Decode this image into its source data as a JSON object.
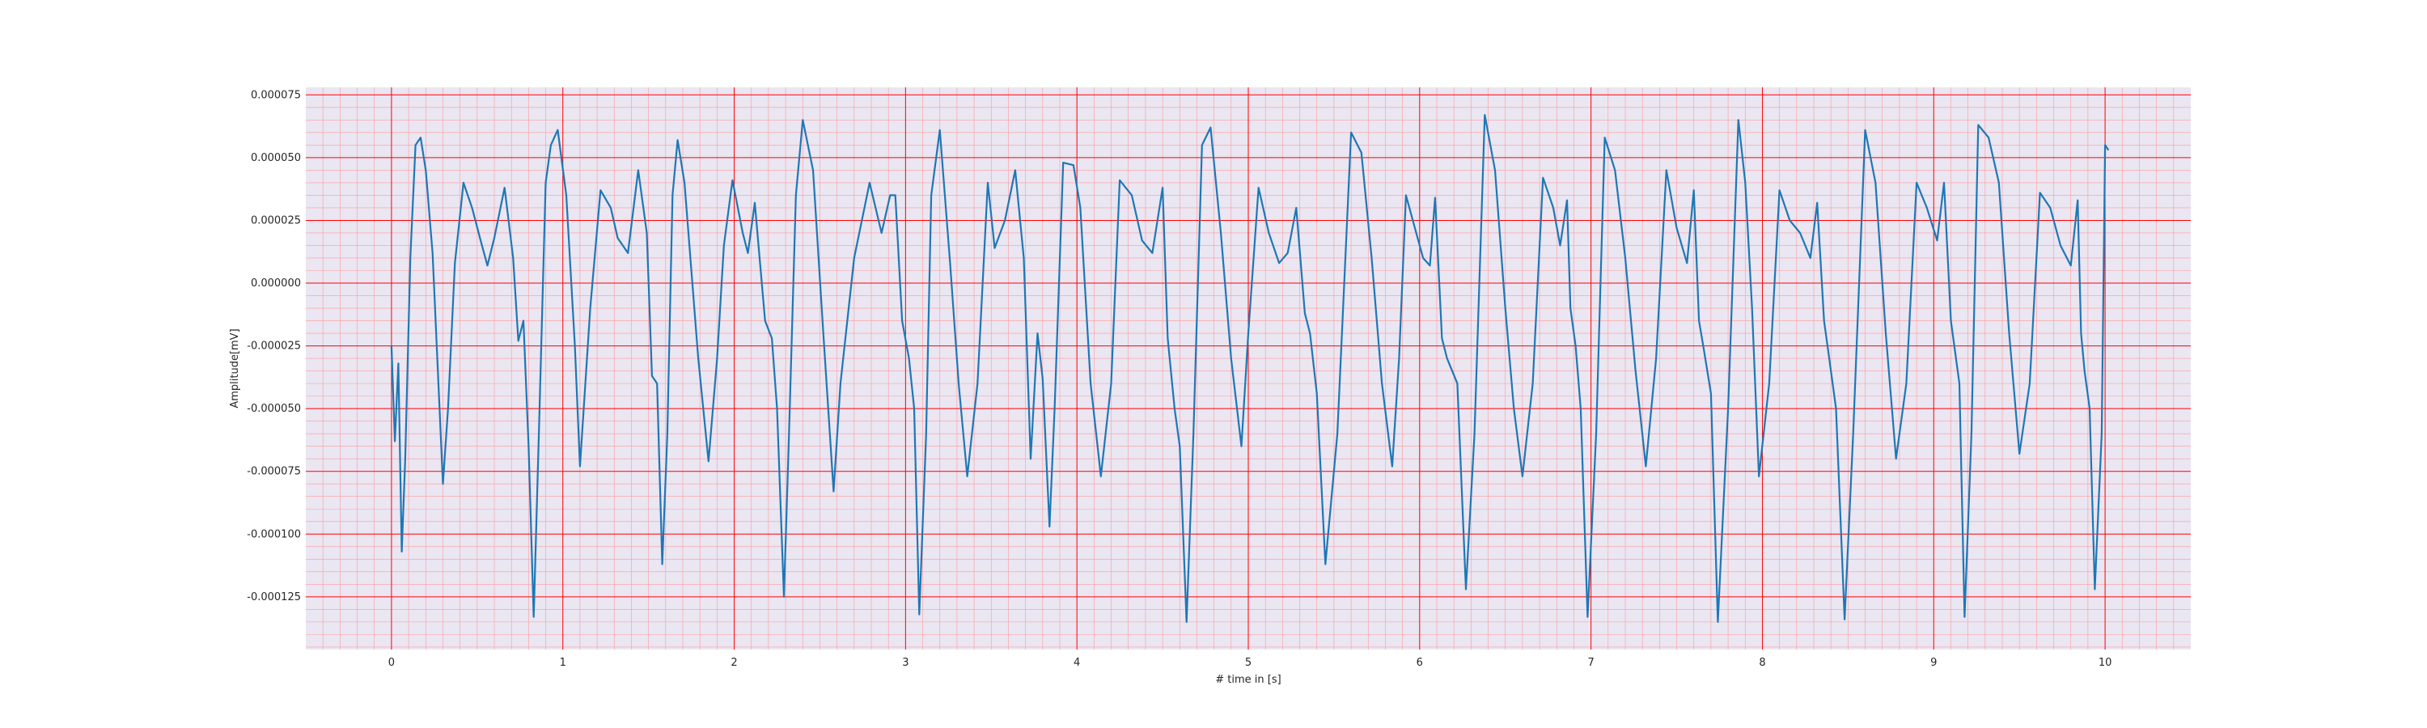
{
  "chart_data": {
    "type": "line",
    "title": "",
    "xlabel": "# time in [s]",
    "ylabel": "Amplitude[mV]",
    "xlim": [
      -0.5,
      10.5
    ],
    "ylim": [
      -0.000146,
      7.8e-05
    ],
    "x_ticks": [
      0,
      1,
      2,
      3,
      4,
      5,
      6,
      7,
      8,
      9,
      10
    ],
    "x_tick_labels": [
      "0",
      "1",
      "2",
      "3",
      "4",
      "5",
      "6",
      "7",
      "8",
      "9",
      "10"
    ],
    "y_ticks": [
      -0.000125,
      -0.0001,
      -7.5e-05,
      -5e-05,
      -2.5e-05,
      0,
      2.5e-05,
      5e-05,
      7.5e-05
    ],
    "y_tick_labels": [
      "-0.000125",
      "-0.000100",
      "-0.000075",
      "-0.000050",
      "-0.000025",
      "0.000000",
      "0.000025",
      "0.000050",
      "0.000075"
    ],
    "grid": {
      "major": true,
      "minor": true,
      "major_color": "#ff0000",
      "minor_color": "#ff9a9a"
    },
    "background_color": "#eae6f2",
    "series": [
      {
        "color": "#1f77b4",
        "x": [
          0.0,
          0.02,
          0.04,
          0.06,
          0.08,
          0.11,
          0.14,
          0.17,
          0.2,
          0.24,
          0.3,
          0.33,
          0.37,
          0.42,
          0.47,
          0.52,
          0.56,
          0.6,
          0.66,
          0.71,
          0.74,
          0.77,
          0.8,
          0.83,
          0.86,
          0.9,
          0.93,
          0.97,
          1.02,
          1.07,
          1.1,
          1.16,
          1.22,
          1.28,
          1.32,
          1.38,
          1.44,
          1.49,
          1.52,
          1.55,
          1.58,
          1.61,
          1.64,
          1.67,
          1.71,
          1.79,
          1.85,
          1.9,
          1.94,
          1.99,
          2.05,
          2.08,
          2.12,
          2.18,
          2.22,
          2.25,
          2.29,
          2.32,
          2.36,
          2.4,
          2.46,
          2.52,
          2.58,
          2.62,
          2.7,
          2.79,
          2.86,
          2.91,
          2.94,
          2.98,
          3.02,
          3.05,
          3.08,
          3.12,
          3.15,
          3.2,
          3.26,
          3.31,
          3.36,
          3.42,
          3.48,
          3.52,
          3.58,
          3.64,
          3.69,
          3.73,
          3.77,
          3.8,
          3.84,
          3.87,
          3.92,
          3.98,
          4.02,
          4.08,
          4.14,
          4.2,
          4.25,
          4.32,
          4.38,
          4.44,
          4.5,
          4.53,
          4.57,
          4.6,
          4.64,
          4.68,
          4.73,
          4.78,
          4.84,
          4.9,
          4.96,
          5.0,
          5.06,
          5.12,
          5.18,
          5.23,
          5.28,
          5.33,
          5.36,
          5.4,
          5.45,
          5.52,
          5.6,
          5.66,
          5.72,
          5.78,
          5.84,
          5.88,
          5.92,
          5.98,
          6.02,
          6.06,
          6.09,
          6.13,
          6.16,
          6.22,
          6.27,
          6.32,
          6.38,
          6.44,
          6.5,
          6.55,
          6.6,
          6.66,
          6.72,
          6.78,
          6.82,
          6.86,
          6.88,
          6.91,
          6.94,
          6.98,
          7.03,
          7.08,
          7.14,
          7.2,
          7.26,
          7.32,
          7.38,
          7.44,
          7.5,
          7.56,
          7.6,
          7.63,
          7.66,
          7.7,
          7.74,
          7.8,
          7.86,
          7.9,
          7.94,
          7.98,
          8.04,
          8.1,
          8.16,
          8.22,
          8.28,
          8.32,
          8.36,
          8.39,
          8.43,
          8.48,
          8.53,
          8.6,
          8.66,
          8.72,
          8.78,
          8.84,
          8.9,
          8.96,
          9.02,
          9.06,
          9.1,
          9.12,
          9.15,
          9.18,
          9.22,
          9.26,
          9.32,
          9.38,
          9.44,
          9.5,
          9.56,
          9.62,
          9.68,
          9.74,
          9.8,
          9.84,
          9.86,
          9.88,
          9.91,
          9.94,
          9.98,
          10.0,
          10.02
        ],
        "y": [
          -2.5e-05,
          -6.3e-05,
          -3.2e-05,
          -0.000107,
          -7e-05,
          1e-05,
          5.5e-05,
          5.8e-05,
          4.5e-05,
          1.2e-05,
          -8e-05,
          -5e-05,
          8e-06,
          4e-05,
          3e-05,
          1.7e-05,
          7e-06,
          1.8e-05,
          3.8e-05,
          1e-05,
          -2.3e-05,
          -1.5e-05,
          -6.5e-05,
          -0.000133,
          -6e-05,
          4e-05,
          5.5e-05,
          6.1e-05,
          3.5e-05,
          -2.5e-05,
          -7.3e-05,
          -1e-05,
          3.7e-05,
          3e-05,
          1.8e-05,
          1.2e-05,
          4.5e-05,
          2e-05,
          -3.7e-05,
          -4e-05,
          -0.000112,
          -6e-05,
          3.5e-05,
          5.7e-05,
          4e-05,
          -3e-05,
          -7.1e-05,
          -3e-05,
          1.5e-05,
          4.1e-05,
          2e-05,
          1.2e-05,
          3.2e-05,
          -1.5e-05,
          -2.2e-05,
          -5e-05,
          -0.000125,
          -6e-05,
          3.5e-05,
          6.5e-05,
          4.5e-05,
          -2e-05,
          -8.3e-05,
          -4e-05,
          1e-05,
          4e-05,
          2e-05,
          3.5e-05,
          3.5e-05,
          -1.5e-05,
          -3e-05,
          -5e-05,
          -0.000132,
          -6e-05,
          3.5e-05,
          6.1e-05,
          8e-06,
          -4e-05,
          -7.7e-05,
          -4e-05,
          4e-05,
          1.4e-05,
          2.5e-05,
          4.5e-05,
          1e-05,
          -7e-05,
          -2e-05,
          -3.8e-05,
          -9.7e-05,
          -5e-05,
          4.8e-05,
          4.7e-05,
          3e-05,
          -4e-05,
          -7.7e-05,
          -4e-05,
          4.1e-05,
          3.5e-05,
          1.7e-05,
          1.2e-05,
          3.8e-05,
          -2.2e-05,
          -5e-05,
          -6.5e-05,
          -0.000135,
          -6e-05,
          5.5e-05,
          6.2e-05,
          2e-05,
          -3e-05,
          -6.5e-05,
          -2e-05,
          3.8e-05,
          2e-05,
          8e-06,
          1.2e-05,
          3e-05,
          -1.2e-05,
          -2e-05,
          -4.4e-05,
          -0.000112,
          -6e-05,
          6e-05,
          5.2e-05,
          1e-05,
          -4e-05,
          -7.3e-05,
          -3e-05,
          3.5e-05,
          2e-05,
          1e-05,
          7e-06,
          3.4e-05,
          -2.2e-05,
          -3e-05,
          -4e-05,
          -0.000122,
          -6e-05,
          6.7e-05,
          4.5e-05,
          -1e-05,
          -5e-05,
          -7.7e-05,
          -4e-05,
          4.2e-05,
          3e-05,
          1.5e-05,
          3.3e-05,
          -1e-05,
          -2.5e-05,
          -5e-05,
          -0.000133,
          -6e-05,
          5.8e-05,
          4.5e-05,
          1e-05,
          -3.5e-05,
          -7.3e-05,
          -3e-05,
          4.5e-05,
          2.2e-05,
          8e-06,
          3.7e-05,
          -1.5e-05,
          -2.7e-05,
          -4.4e-05,
          -0.000135,
          -5e-05,
          6.5e-05,
          4e-05,
          -1e-05,
          -7.7e-05,
          -4e-05,
          3.7e-05,
          2.5e-05,
          2e-05,
          1e-05,
          3.2e-05,
          -1.5e-05,
          -3e-05,
          -5e-05,
          -0.000134,
          -6e-05,
          6.1e-05,
          4e-05,
          -2e-05,
          -7e-05,
          -4e-05,
          4e-05,
          3e-05,
          1.7e-05,
          4e-05,
          -1.5e-05,
          -2.5e-05,
          -4e-05,
          -0.000133,
          -6e-05,
          6.3e-05,
          5.8e-05,
          4e-05,
          -2e-05,
          -6.8e-05,
          -4e-05,
          3.6e-05,
          3e-05,
          1.5e-05,
          7e-06,
          3.3e-05,
          -2e-05,
          -3.5e-05,
          -5e-05,
          -0.000122,
          -6e-05,
          5.5e-05,
          5.3e-05
        ]
      }
    ]
  }
}
